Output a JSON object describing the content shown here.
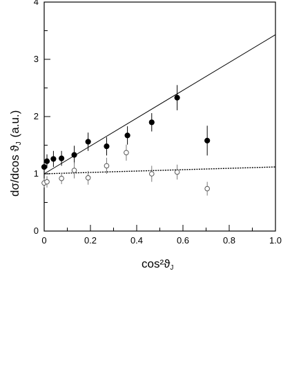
{
  "chart_data": {
    "type": "scatter",
    "title": "",
    "xlabel": "cos²ϑ",
    "xlabel_sub": "J",
    "ylabel": "dσ/dcos ϑ",
    "ylabel_sub": "J",
    "ylabel_unit": "(a.u.)",
    "xlim": [
      0,
      1.0
    ],
    "ylim": [
      0,
      4
    ],
    "xticks": [
      0,
      0.2,
      0.4,
      0.6,
      0.8,
      1.0
    ],
    "xtick_labels": [
      "0",
      "0.2",
      "0.4",
      "0.6",
      "0.8",
      "1.0"
    ],
    "yticks": [
      0,
      1,
      2,
      3,
      4
    ],
    "ytick_labels": [
      "0",
      "1",
      "2",
      "3",
      "4"
    ],
    "grid": false,
    "series": [
      {
        "marker": "filled-circle",
        "x": [
          0.0,
          0.012,
          0.04,
          0.075,
          0.13,
          0.19,
          0.27,
          0.36,
          0.465,
          0.575,
          0.705
        ],
        "y": [
          1.12,
          1.22,
          1.26,
          1.27,
          1.33,
          1.56,
          1.48,
          1.67,
          1.9,
          2.33,
          1.58
        ],
        "err": [
          0.14,
          0.12,
          0.14,
          0.13,
          0.16,
          0.16,
          0.16,
          0.16,
          0.16,
          0.22,
          0.26
        ]
      },
      {
        "marker": "open-circle",
        "x": [
          0.0,
          0.012,
          0.075,
          0.13,
          0.19,
          0.27,
          0.355,
          0.465,
          0.575,
          0.705
        ],
        "y": [
          0.84,
          0.86,
          0.92,
          1.06,
          0.93,
          1.14,
          1.37,
          1.0,
          1.03,
          0.74
        ],
        "err": [
          0.08,
          0.1,
          0.1,
          0.14,
          0.12,
          0.14,
          0.14,
          0.14,
          0.13,
          0.12
        ]
      }
    ],
    "lines": [
      {
        "style": "solid",
        "x": [
          0,
          1.0
        ],
        "y": [
          1.0,
          3.43
        ]
      },
      {
        "style": "dotted",
        "x": [
          0,
          1.0
        ],
        "y": [
          1.0,
          1.12
        ]
      }
    ]
  }
}
